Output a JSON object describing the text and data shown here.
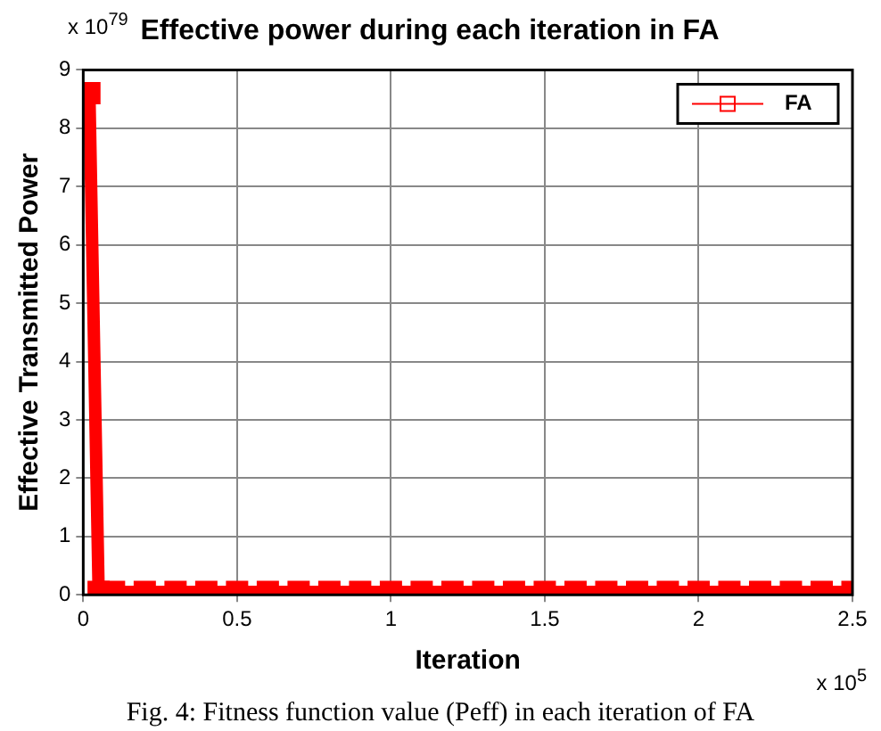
{
  "chart_data": {
    "type": "line",
    "title": "Effective power during each iteration in FA",
    "xlabel": "Iteration",
    "ylabel": "Effective Transmitted Power",
    "annotations": [
      "x 10$^{79}$",
      "x 10$^{5}$",
      "Fig. 4: Fitness function value (Peff) in each iteration of FA"
    ],
    "x": [
      0.02,
      0.05,
      0.1,
      0.2,
      0.3,
      0.4,
      0.5,
      0.6,
      0.7,
      0.8,
      0.9,
      1.0,
      1.1,
      1.2,
      1.3,
      1.4,
      1.5,
      1.6,
      1.7,
      1.8,
      1.9,
      2.0,
      2.1,
      2.2,
      2.3,
      2.4,
      2.5
    ],
    "series": [
      {
        "name": "FA",
        "color": "#ff0000",
        "values": [
          8.6,
          0.05,
          0.05,
          0.05,
          0.05,
          0.05,
          0.05,
          0.05,
          0.05,
          0.05,
          0.05,
          0.05,
          0.05,
          0.05,
          0.05,
          0.05,
          0.05,
          0.05,
          0.05,
          0.05,
          0.05,
          0.05,
          0.05,
          0.05,
          0.05,
          0.05,
          0.05
        ]
      }
    ],
    "xlim": [
      0,
      2.5
    ],
    "xticks": [
      0,
      0.5,
      1,
      1.5,
      2,
      2.5
    ],
    "ylim": [
      0,
      9
    ],
    "yticks": [
      0,
      1,
      2,
      3,
      4,
      5,
      6,
      7,
      8,
      9
    ],
    "grid": true,
    "legend": "top right",
    "marker": "square",
    "line_style": "solid"
  }
}
